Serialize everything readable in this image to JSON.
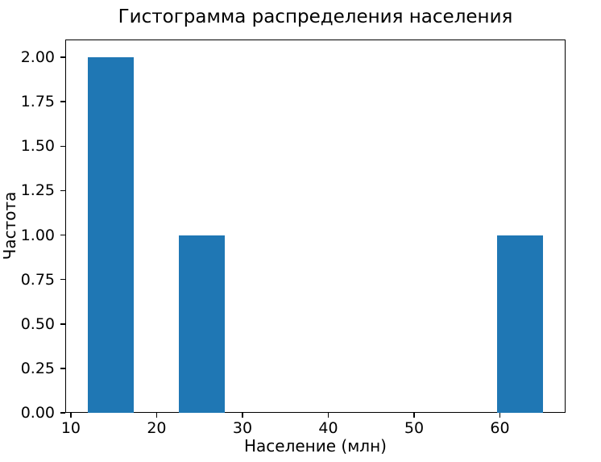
{
  "chart_data": {
    "type": "bar",
    "subtype": "histogram",
    "title": "Гистограмма распределения населения",
    "xlabel": "Население (млн)",
    "ylabel": "Частота",
    "bin_edges": [
      12.0,
      17.3,
      22.6,
      27.9,
      33.2,
      38.5,
      43.8,
      49.1,
      54.4,
      59.7,
      65.0
    ],
    "counts": [
      2,
      0,
      1,
      0,
      0,
      0,
      0,
      0,
      0,
      1
    ],
    "xticks": [
      10,
      20,
      30,
      40,
      50,
      60
    ],
    "xtick_labels": [
      "10",
      "20",
      "30",
      "40",
      "50",
      "60"
    ],
    "yticks": [
      0,
      0.25,
      0.5,
      0.75,
      1.0,
      1.25,
      1.5,
      1.75,
      2.0
    ],
    "ytick_labels": [
      "0.00",
      "0.25",
      "0.50",
      "0.75",
      "1.00",
      "1.25",
      "1.50",
      "1.75",
      "2.00"
    ],
    "xlim": [
      9.35,
      67.65
    ],
    "ylim": [
      0,
      2.1
    ],
    "grid": false,
    "legend": null,
    "bar_color": "#1f77b4",
    "axis_color": "#000000",
    "background_color": "#ffffff"
  }
}
